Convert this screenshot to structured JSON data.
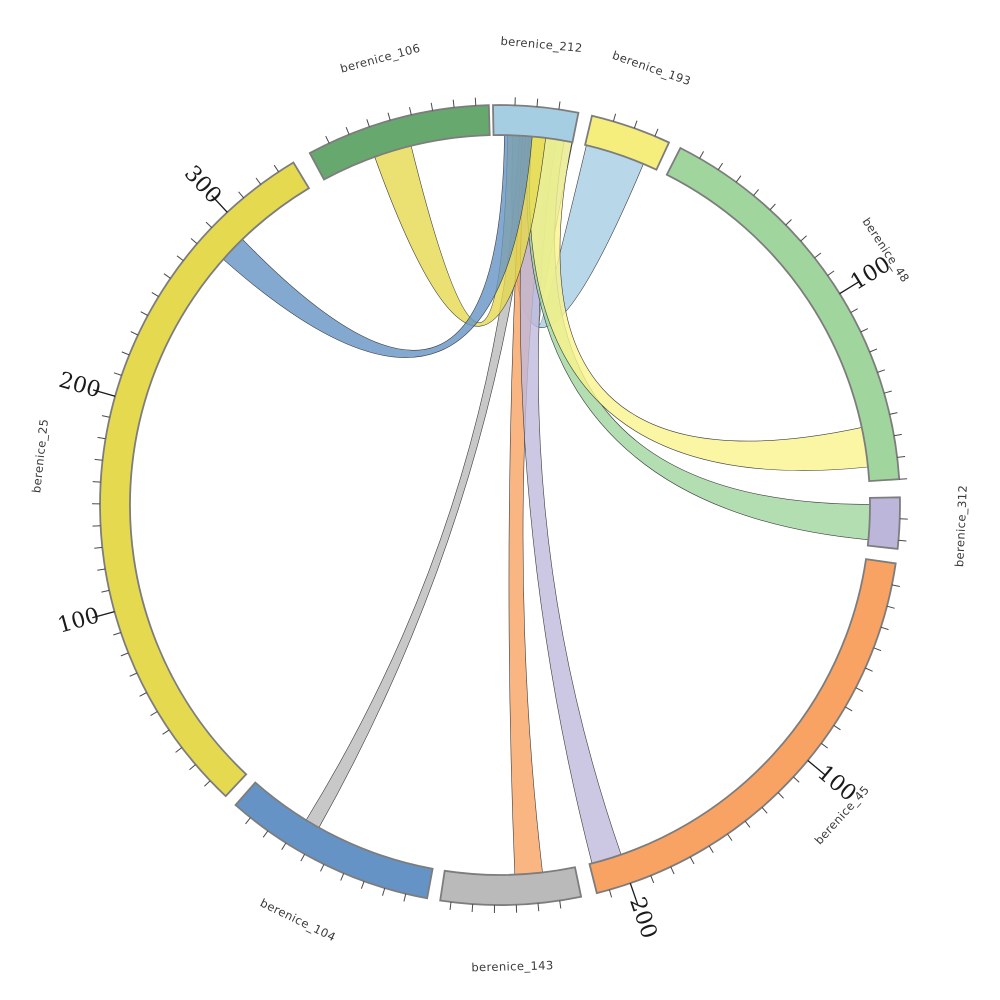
{
  "title": "",
  "chart_data": {
    "type": "chord",
    "description": "Circular chord (circos-style) diagram; hub sector berenice_212 linked to all other sectors",
    "center": [
      500,
      505
    ],
    "radius_outer": 400,
    "radius_inner": 370,
    "label_radius": 462,
    "tick_label_radius": 437,
    "units_per_minor_tick": 10,
    "deg_per_unit": 0.3123,
    "sectors": [
      {
        "name": "berenice_212",
        "start_deg": -1.0,
        "end_deg": 11.3,
        "size": 39,
        "color": "#A6CEE3",
        "major_ticks": []
      },
      {
        "name": "berenice_193",
        "start_deg": 13.3,
        "end_deg": 25.0,
        "size": 37,
        "color": "#F5EE7D",
        "major_ticks": []
      },
      {
        "name": "berenice_48",
        "start_deg": 26.8,
        "end_deg": 86.3,
        "size": 190,
        "color": "#A0D69E",
        "major_ticks": [
          100
        ]
      },
      {
        "name": "berenice_312",
        "start_deg": 88.9,
        "end_deg": 96.3,
        "size": 24,
        "color": "#BCB6DA",
        "major_ticks": []
      },
      {
        "name": "berenice_45",
        "start_deg": 98.4,
        "end_deg": 166.0,
        "size": 216,
        "color": "#F8A263",
        "major_ticks": [
          100,
          200
        ]
      },
      {
        "name": "berenice_143",
        "start_deg": 168.3,
        "end_deg": 188.6,
        "size": 65,
        "color": "#BABABA",
        "major_ticks": []
      },
      {
        "name": "berenice_104",
        "start_deg": 190.5,
        "end_deg": 221.4,
        "size": 99,
        "color": "#6593C6",
        "major_ticks": []
      },
      {
        "name": "berenice_25",
        "start_deg": 223.3,
        "end_deg": 328.9,
        "size": 338,
        "color": "#E5DA4F",
        "major_ticks": [
          100,
          200,
          300
        ]
      },
      {
        "name": "berenice_106",
        "start_deg": 331.6,
        "end_deg": 358.4,
        "size": 86,
        "color": "#67A86F",
        "major_ticks": []
      }
    ],
    "links": [
      {
        "from": "berenice_212",
        "to": "berenice_193",
        "from_range": [
          2.0,
          11.3
        ],
        "to_range": [
          13.5,
          22.8
        ],
        "color": "#A6CEE3"
      },
      {
        "from": "berenice_212",
        "to": "berenice_104",
        "from_range": [
          3.0,
          5.3
        ],
        "to_range": [
          209.3,
          211.6
        ],
        "color": "#BABABA"
      },
      {
        "from": "berenice_212",
        "to": "berenice_143",
        "from_range": [
          3.5,
          7.8
        ],
        "to_range": [
          173.4,
          177.7
        ],
        "color": "#F8A263"
      },
      {
        "from": "berenice_212",
        "to": "berenice_45",
        "from_range": [
          4.0,
          8.7
        ],
        "to_range": [
          160.9,
          165.6
        ],
        "color": "#BFB9DC"
      },
      {
        "from": "berenice_212",
        "to": "berenice_312",
        "from_range": [
          4.5,
          10.0
        ],
        "to_range": [
          89.9,
          95.4
        ],
        "color": "#A0D69E"
      },
      {
        "from": "berenice_212",
        "to": "berenice_48",
        "from_range": [
          5.0,
          11.2
        ],
        "to_range": [
          77.9,
          84.1
        ],
        "color": "#FAF48C"
      },
      {
        "from": "berenice_212",
        "to": "berenice_106",
        "from_range": [
          1.2,
          7.1
        ],
        "to_range": [
          340.2,
          346.1
        ],
        "color": "#E5DA4F"
      },
      {
        "from": "berenice_212",
        "to": "berenice_25",
        "from_range": [
          0.7,
          5.0
        ],
        "to_range": [
          311.6,
          315.9
        ],
        "color": "#6593C6"
      }
    ],
    "tick_label_values_visible": [
      "100",
      "200",
      "300",
      "100",
      "100",
      "200"
    ]
  }
}
